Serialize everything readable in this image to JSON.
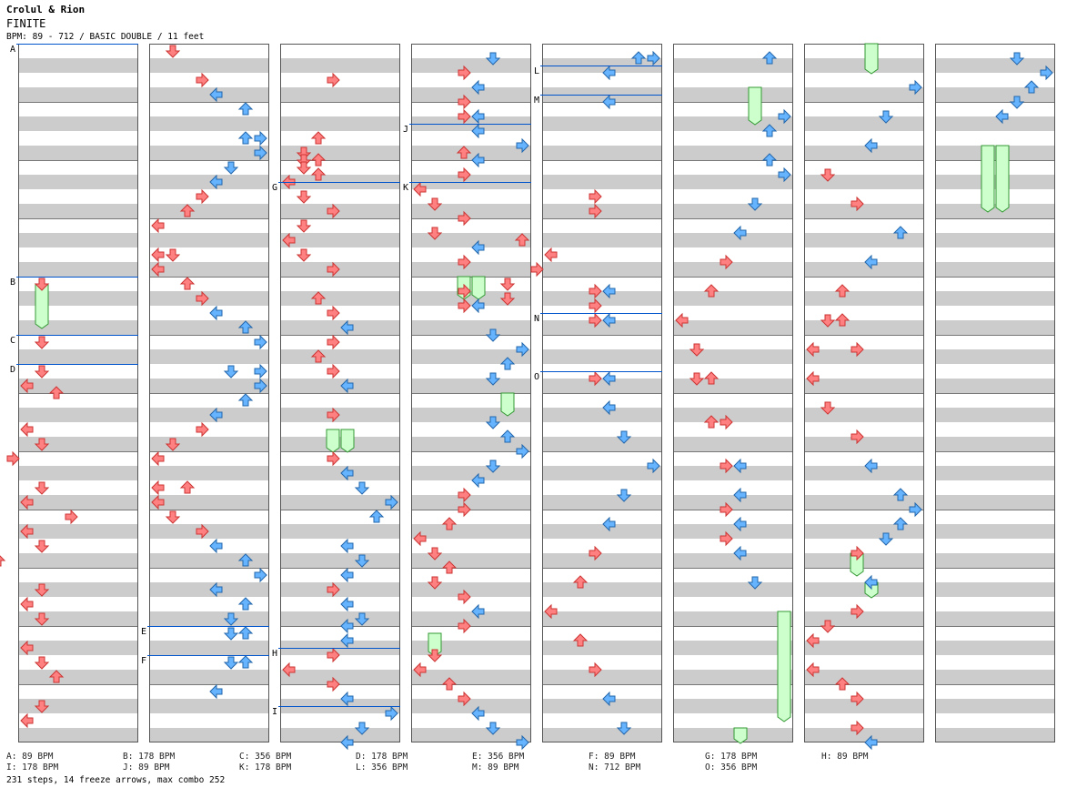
{
  "header": {
    "artist": "Crolul & Rion",
    "title": "FINITE",
    "info": "BPM: 89 - 712 / BASIC DOUBLE / 11 feet"
  },
  "colors": {
    "red_arrow": "#ff8080",
    "blue_arrow": "#66b3ff",
    "freeze": "#ccffcc",
    "stripe": "#cccccc",
    "bpm_line": "#0055cc"
  },
  "chart_data": {
    "type": "step-chart",
    "columns": 8,
    "measures_per_column": 12,
    "lanes": [
      "left-1p",
      "down-1p",
      "up-1p",
      "right-1p",
      "left-2p",
      "down-2p",
      "up-2p",
      "right-2p"
    ],
    "bpm_changes": [
      {
        "label": "A",
        "column": 0,
        "measure": 0.0
      },
      {
        "label": "B",
        "column": 0,
        "measure": 4.0
      },
      {
        "label": "C",
        "column": 0,
        "measure": 5.0
      },
      {
        "label": "D",
        "column": 0,
        "measure": 5.5
      },
      {
        "label": "E",
        "column": 1,
        "measure": 10.0
      },
      {
        "label": "F",
        "column": 1,
        "measure": 10.5
      },
      {
        "label": "G",
        "column": 2,
        "measure": 2.375
      },
      {
        "label": "H",
        "column": 2,
        "measure": 10.375
      },
      {
        "label": "I",
        "column": 2,
        "measure": 11.375
      },
      {
        "label": "J",
        "column": 3,
        "measure": 1.375
      },
      {
        "label": "K",
        "column": 3,
        "measure": 2.375
      },
      {
        "label": "L",
        "column": 4,
        "measure": 0.375
      },
      {
        "label": "M",
        "column": 4,
        "measure": 0.875
      },
      {
        "label": "N",
        "column": 4,
        "measure": 4.625
      },
      {
        "label": "O",
        "column": 4,
        "measure": 5.625
      }
    ],
    "notes": [
      [
        0,
        1,
        4.125
      ],
      [
        0,
        1,
        5.125
      ],
      [
        0,
        1,
        5.625
      ],
      [
        0,
        0,
        5.875
      ],
      [
        0,
        2,
        6.0
      ],
      [
        0,
        0,
        6.625
      ],
      [
        0,
        1,
        6.875
      ],
      [
        0,
        -1,
        7.125
      ],
      [
        0,
        1,
        7.625
      ],
      [
        0,
        0,
        7.875
      ],
      [
        0,
        3,
        8.125
      ],
      [
        0,
        0,
        8.375
      ],
      [
        0,
        1,
        8.625
      ],
      [
        0,
        -2,
        8.875
      ],
      [
        0,
        1,
        9.375
      ],
      [
        0,
        0,
        9.625
      ],
      [
        0,
        1,
        9.875
      ],
      [
        0,
        0,
        10.375
      ],
      [
        0,
        1,
        10.625
      ],
      [
        0,
        2,
        10.875
      ],
      [
        0,
        1,
        11.375
      ],
      [
        0,
        0,
        11.625
      ],
      [
        1,
        1,
        0.125
      ],
      [
        1,
        3,
        0.625
      ],
      [
        1,
        4,
        0.875
      ],
      [
        1,
        6,
        1.125
      ],
      [
        1,
        6,
        1.625
      ],
      [
        1,
        7,
        1.625
      ],
      [
        1,
        7,
        1.875
      ],
      [
        1,
        5,
        2.125
      ],
      [
        1,
        4,
        2.375
      ],
      [
        1,
        3,
        2.625
      ],
      [
        1,
        2,
        2.875
      ],
      [
        1,
        0,
        3.125
      ],
      [
        1,
        0,
        3.625
      ],
      [
        1,
        1,
        3.625
      ],
      [
        1,
        0,
        3.875
      ],
      [
        1,
        2,
        4.125
      ],
      [
        1,
        3,
        4.375
      ],
      [
        1,
        4,
        4.625
      ],
      [
        1,
        6,
        4.875
      ],
      [
        1,
        7,
        5.125
      ],
      [
        1,
        5,
        5.625
      ],
      [
        1,
        7,
        5.625
      ],
      [
        1,
        7,
        5.875
      ],
      [
        1,
        6,
        6.125
      ],
      [
        1,
        4,
        6.375
      ],
      [
        1,
        3,
        6.625
      ],
      [
        1,
        1,
        6.875
      ],
      [
        1,
        0,
        7.125
      ],
      [
        1,
        0,
        7.625
      ],
      [
        1,
        2,
        7.625
      ],
      [
        1,
        0,
        7.875
      ],
      [
        1,
        1,
        8.125
      ],
      [
        1,
        3,
        8.375
      ],
      [
        1,
        4,
        8.625
      ],
      [
        1,
        6,
        8.875
      ],
      [
        1,
        7,
        9.125
      ],
      [
        1,
        4,
        9.375
      ],
      [
        1,
        6,
        9.625
      ],
      [
        1,
        5,
        9.875
      ],
      [
        1,
        5,
        10.125
      ],
      [
        1,
        6,
        10.125
      ],
      [
        1,
        5,
        10.625
      ],
      [
        1,
        6,
        10.625
      ],
      [
        1,
        4,
        11.125
      ],
      [
        2,
        3,
        0.625
      ],
      [
        2,
        2,
        1.625
      ],
      [
        2,
        1,
        1.875
      ],
      [
        2,
        1,
        2.0
      ],
      [
        2,
        2,
        2.0
      ],
      [
        2,
        1,
        2.125
      ],
      [
        2,
        2,
        2.25
      ],
      [
        2,
        0,
        2.375
      ],
      [
        2,
        1,
        2.625
      ],
      [
        2,
        3,
        2.875
      ],
      [
        2,
        1,
        3.125
      ],
      [
        2,
        0,
        3.375
      ],
      [
        2,
        1,
        3.625
      ],
      [
        2,
        3,
        3.875
      ],
      [
        2,
        2,
        4.375
      ],
      [
        2,
        3,
        4.625
      ],
      [
        2,
        4,
        4.875
      ],
      [
        2,
        3,
        5.125
      ],
      [
        2,
        2,
        5.375
      ],
      [
        2,
        3,
        5.625
      ],
      [
        2,
        4,
        5.875
      ],
      [
        2,
        3,
        6.375
      ],
      [
        2,
        3,
        7.125
      ],
      [
        2,
        4,
        7.375
      ],
      [
        2,
        5,
        7.625
      ],
      [
        2,
        7,
        7.875
      ],
      [
        2,
        6,
        8.125
      ],
      [
        2,
        4,
        8.625
      ],
      [
        2,
        5,
        8.875
      ],
      [
        2,
        4,
        9.125
      ],
      [
        2,
        3,
        9.375
      ],
      [
        2,
        4,
        9.625
      ],
      [
        2,
        5,
        9.875
      ],
      [
        2,
        4,
        10.0
      ],
      [
        2,
        4,
        10.25
      ],
      [
        2,
        3,
        10.5
      ],
      [
        2,
        0,
        10.75
      ],
      [
        2,
        3,
        11.0
      ],
      [
        2,
        4,
        11.25
      ],
      [
        2,
        7,
        11.5
      ],
      [
        2,
        5,
        11.75
      ],
      [
        2,
        4,
        12.0
      ],
      [
        3,
        5,
        0.25
      ],
      [
        3,
        3,
        0.5
      ],
      [
        3,
        4,
        0.75
      ],
      [
        3,
        3,
        1.0
      ],
      [
        3,
        3,
        1.25
      ],
      [
        3,
        4,
        1.25
      ],
      [
        3,
        4,
        1.5
      ],
      [
        3,
        7,
        1.75
      ],
      [
        3,
        4,
        2.0
      ],
      [
        3,
        3,
        2.25
      ],
      [
        3,
        0,
        2.5
      ],
      [
        3,
        1,
        2.75
      ],
      [
        3,
        3,
        3.0
      ],
      [
        3,
        1,
        3.25
      ],
      [
        3,
        4,
        3.5
      ],
      [
        3,
        3,
        3.75
      ],
      [
        3,
        3,
        4.25
      ],
      [
        3,
        3,
        4.5
      ],
      [
        3,
        4,
        4.5
      ],
      [
        3,
        5,
        5.0
      ],
      [
        3,
        7,
        5.25
      ],
      [
        3,
        6,
        5.5
      ],
      [
        3,
        5,
        5.75
      ],
      [
        3,
        5,
        6.5
      ],
      [
        3,
        6,
        6.75
      ],
      [
        3,
        7,
        7.0
      ],
      [
        3,
        5,
        7.25
      ],
      [
        3,
        4,
        7.5
      ],
      [
        3,
        3,
        7.75
      ],
      [
        3,
        3,
        8.0
      ],
      [
        3,
        2,
        8.25
      ],
      [
        3,
        0,
        8.5
      ],
      [
        3,
        1,
        8.75
      ],
      [
        3,
        2,
        9.0
      ],
      [
        3,
        1,
        9.25
      ],
      [
        3,
        3,
        9.5
      ],
      [
        3,
        4,
        9.75
      ],
      [
        3,
        3,
        10.0
      ],
      [
        3,
        1,
        10.5
      ],
      [
        3,
        0,
        10.75
      ],
      [
        3,
        2,
        11.0
      ],
      [
        3,
        3,
        11.25
      ],
      [
        3,
        4,
        11.5
      ],
      [
        3,
        5,
        11.75
      ],
      [
        3,
        7,
        12.0
      ],
      [
        4,
        6,
        0.25
      ],
      [
        4,
        7,
        0.25
      ],
      [
        4,
        4,
        0.5
      ],
      [
        4,
        4,
        1.0
      ],
      [
        4,
        -6,
        1.875
      ],
      [
        4,
        3,
        2.625
      ],
      [
        4,
        3,
        2.875
      ],
      [
        4,
        -2,
        3.375
      ],
      [
        4,
        0,
        3.625
      ],
      [
        4,
        -1,
        3.875
      ],
      [
        4,
        -3,
        4.125
      ],
      [
        4,
        3,
        4.25
      ],
      [
        4,
        4,
        4.25
      ],
      [
        4,
        -3,
        4.375
      ],
      [
        4,
        3,
        4.5
      ],
      [
        4,
        3,
        4.75
      ],
      [
        4,
        4,
        4.75
      ],
      [
        4,
        3,
        5.75
      ],
      [
        4,
        4,
        5.75
      ],
      [
        4,
        4,
        6.25
      ],
      [
        4,
        5,
        6.75
      ],
      [
        4,
        7,
        7.25
      ],
      [
        4,
        5,
        7.75
      ],
      [
        4,
        4,
        8.25
      ],
      [
        4,
        3,
        8.75
      ],
      [
        4,
        2,
        9.25
      ],
      [
        4,
        0,
        9.75
      ],
      [
        4,
        2,
        10.25
      ],
      [
        4,
        3,
        10.75
      ],
      [
        4,
        4,
        11.25
      ],
      [
        4,
        5,
        11.75
      ],
      [
        5,
        6,
        0.25
      ],
      [
        5,
        7,
        1.25
      ],
      [
        5,
        6,
        1.5
      ],
      [
        5,
        6,
        2.0
      ],
      [
        5,
        7,
        2.25
      ],
      [
        5,
        5,
        2.75
      ],
      [
        5,
        4,
        3.25
      ],
      [
        5,
        3,
        3.75
      ],
      [
        5,
        2,
        4.25
      ],
      [
        5,
        0,
        4.75
      ],
      [
        5,
        1,
        5.25
      ],
      [
        5,
        1,
        5.75
      ],
      [
        5,
        2,
        5.75
      ],
      [
        5,
        2,
        6.5
      ],
      [
        5,
        3,
        6.5
      ],
      [
        5,
        3,
        7.25
      ],
      [
        5,
        4,
        7.25
      ],
      [
        5,
        4,
        7.75
      ],
      [
        5,
        3,
        8.0
      ],
      [
        5,
        4,
        8.25
      ],
      [
        5,
        3,
        8.5
      ],
      [
        5,
        4,
        8.75
      ],
      [
        5,
        5,
        9.25
      ],
      [
        6,
        7,
        0.75
      ],
      [
        6,
        5,
        1.25
      ],
      [
        6,
        4,
        1.75
      ],
      [
        6,
        1,
        2.25
      ],
      [
        6,
        3,
        2.75
      ],
      [
        6,
        6,
        3.25
      ],
      [
        6,
        4,
        3.75
      ],
      [
        6,
        2,
        4.25
      ],
      [
        6,
        1,
        4.75
      ],
      [
        6,
        2,
        4.75
      ],
      [
        6,
        0,
        5.25
      ],
      [
        6,
        3,
        5.25
      ],
      [
        6,
        0,
        5.75
      ],
      [
        6,
        1,
        6.25
      ],
      [
        6,
        3,
        6.75
      ],
      [
        6,
        4,
        7.25
      ],
      [
        6,
        6,
        7.75
      ],
      [
        6,
        7,
        8.0
      ],
      [
        6,
        6,
        8.25
      ],
      [
        6,
        5,
        8.5
      ],
      [
        6,
        3,
        8.75
      ],
      [
        6,
        4,
        9.25
      ],
      [
        6,
        3,
        9.75
      ],
      [
        6,
        1,
        10.0
      ],
      [
        6,
        0,
        10.25
      ],
      [
        6,
        0,
        10.75
      ],
      [
        6,
        2,
        11.0
      ],
      [
        6,
        3,
        11.25
      ],
      [
        6,
        3,
        11.75
      ],
      [
        6,
        4,
        12.0
      ],
      [
        7,
        5,
        0.25
      ],
      [
        7,
        7,
        0.5
      ],
      [
        7,
        6,
        0.75
      ],
      [
        7,
        5,
        1.0
      ],
      [
        7,
        4,
        1.25
      ]
    ],
    "freezes": [
      [
        0,
        1,
        4.125,
        4.875
      ],
      [
        2,
        3,
        6.625,
        7.0
      ],
      [
        2,
        4,
        6.625,
        7.0
      ],
      [
        3,
        3,
        4.0,
        4.375
      ],
      [
        3,
        4,
        4.0,
        4.375
      ],
      [
        3,
        6,
        6.0,
        6.375
      ],
      [
        3,
        1,
        10.125,
        10.5
      ],
      [
        5,
        5,
        0.75,
        1.375
      ],
      [
        5,
        7,
        9.75,
        11.625
      ],
      [
        5,
        4,
        11.75,
        12.0
      ],
      [
        6,
        4,
        0.0,
        0.5
      ],
      [
        6,
        3,
        8.75,
        9.125
      ],
      [
        6,
        4,
        9.25,
        9.5
      ],
      [
        7,
        3,
        1.75,
        2.875
      ],
      [
        7,
        4,
        1.75,
        2.875
      ]
    ]
  },
  "legend": [
    "A: 89 BPM",
    "B: 178 BPM",
    "C: 356 BPM",
    "D: 178 BPM",
    "E: 356 BPM",
    "F: 89 BPM",
    "G: 178 BPM",
    "H: 89 BPM",
    "I: 178 BPM",
    "J: 89 BPM",
    "K: 178 BPM",
    "L: 356 BPM",
    "M: 89 BPM",
    "N: 712 BPM",
    "O: 356 BPM"
  ],
  "footer": "231 steps, 14 freeze arrows, max combo 252"
}
